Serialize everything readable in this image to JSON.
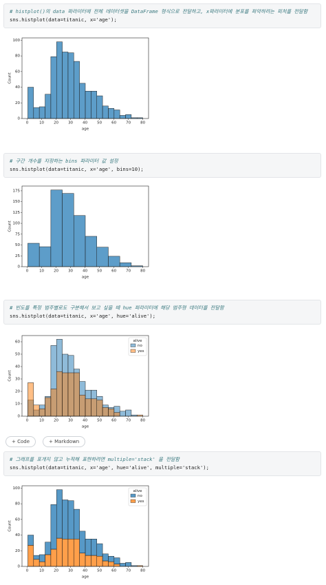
{
  "cells": [
    {
      "comment": "# histplot()의 data 파라미터에 전체 데이터셋을 DataFrame 형식으로 전달하고, x파라미터에 분포를 파악하려는 피처를 전달함",
      "code": "sns.histplot(data=titanic, x='age');"
    },
    {
      "comment": "# 구간 개수를 지정하는 bins 파라미터 값 설정",
      "code": "sns.histplot(data=titanic, x='age', bins=10);"
    },
    {
      "comment": "# 빈도를 특정 범주별로도 구분해서 보고 싶을 때 hue 파라미터에 해당 범주형 데이터를 전달함",
      "code": "sns.histplot(data=titanic, x='age', hue='alive');"
    },
    {
      "comment": "# 그래프를 포개지 않고 누적해 표현하려면 multiple='stack' 을 전달함",
      "code": "sns.histplot(data=titanic, x='age', hue='alive', multiple='stack');"
    }
  ],
  "buttons": [
    "Code",
    "Markdown"
  ],
  "chart_data": [
    {
      "type": "histogram",
      "xlabel": "age",
      "ylabel": "Count",
      "color": "#1f77b4",
      "bins": [
        0.42,
        4.4,
        8.38,
        12.36,
        16.34,
        20.32,
        24.29,
        28.27,
        32.25,
        36.23,
        40.21,
        44.19,
        48.17,
        52.15,
        56.13,
        60.11,
        64.08,
        68.06,
        72.04,
        76.02,
        80
      ],
      "values": [
        40,
        14,
        15,
        31,
        79,
        98,
        85,
        84,
        73,
        45,
        35,
        35,
        29,
        16,
        13,
        11,
        4,
        5,
        1,
        1
      ],
      "xlim": [
        -3.6,
        84
      ],
      "xticks": [
        0,
        10,
        20,
        30,
        40,
        50,
        60,
        70,
        80
      ],
      "ylim": [
        0,
        103
      ],
      "yticks": [
        0,
        20,
        40,
        60,
        80,
        100
      ]
    },
    {
      "type": "histogram",
      "xlabel": "age",
      "ylabel": "Count",
      "color": "#1f77b4",
      "bins": [
        0.42,
        8.38,
        16.34,
        24.29,
        32.25,
        40.21,
        48.17,
        56.13,
        64.08,
        72.04,
        80
      ],
      "values": [
        54,
        46,
        177,
        169,
        118,
        70,
        45,
        24,
        9,
        2
      ],
      "xlim": [
        -3.6,
        84
      ],
      "xticks": [
        0,
        10,
        20,
        30,
        40,
        50,
        60,
        70,
        80
      ],
      "ylim": [
        0,
        186
      ],
      "yticks": [
        0,
        25,
        50,
        75,
        100,
        125,
        150,
        175
      ]
    },
    {
      "type": "histogram",
      "multiple": "layer",
      "xlabel": "age",
      "ylabel": "Count",
      "legend_title": "alive",
      "legend": "upper right",
      "bins": [
        0.42,
        4.4,
        8.38,
        12.36,
        16.34,
        20.32,
        24.29,
        28.27,
        32.25,
        36.23,
        40.21,
        44.19,
        48.17,
        52.15,
        56.13,
        60.11,
        64.08,
        68.06,
        72.04,
        76.02,
        80
      ],
      "series": [
        {
          "name": "no",
          "color": "#1f77b4",
          "values": [
            13,
            5,
            9,
            16,
            57,
            62,
            50,
            49,
            38,
            28,
            21,
            21,
            16,
            9,
            7,
            8,
            4,
            5,
            1,
            0
          ]
        },
        {
          "name": "yes",
          "color": "#ff7f0e",
          "values": [
            27,
            9,
            6,
            15,
            22,
            36,
            35,
            35,
            35,
            17,
            14,
            14,
            13,
            7,
            6,
            3,
            0,
            0,
            0,
            1
          ]
        }
      ],
      "xlim": [
        -3.6,
        84
      ],
      "xticks": [
        0,
        10,
        20,
        30,
        40,
        50,
        60,
        70,
        80
      ],
      "ylim": [
        0,
        65
      ],
      "yticks": [
        0,
        10,
        20,
        30,
        40,
        50,
        60
      ]
    },
    {
      "type": "histogram",
      "multiple": "stack",
      "xlabel": "age",
      "ylabel": "Count",
      "legend_title": "alive",
      "legend": "upper right",
      "bins": [
        0.42,
        4.4,
        8.38,
        12.36,
        16.34,
        20.32,
        24.29,
        28.27,
        32.25,
        36.23,
        40.21,
        44.19,
        48.17,
        52.15,
        56.13,
        60.11,
        64.08,
        68.06,
        72.04,
        76.02,
        80
      ],
      "series": [
        {
          "name": "no",
          "color": "#1f77b4",
          "values": [
            13,
            5,
            9,
            16,
            57,
            62,
            50,
            49,
            38,
            28,
            21,
            21,
            16,
            9,
            7,
            8,
            4,
            5,
            1,
            0
          ]
        },
        {
          "name": "yes",
          "color": "#ff7f0e",
          "values": [
            27,
            9,
            6,
            15,
            22,
            36,
            35,
            35,
            35,
            17,
            14,
            14,
            13,
            7,
            6,
            3,
            0,
            0,
            0,
            1
          ]
        }
      ],
      "xlim": [
        -3.6,
        84
      ],
      "xticks": [
        0,
        10,
        20,
        30,
        40,
        50,
        60,
        70,
        80
      ],
      "ylim": [
        0,
        103
      ],
      "yticks": [
        0,
        20,
        40,
        60,
        80,
        100
      ]
    }
  ]
}
